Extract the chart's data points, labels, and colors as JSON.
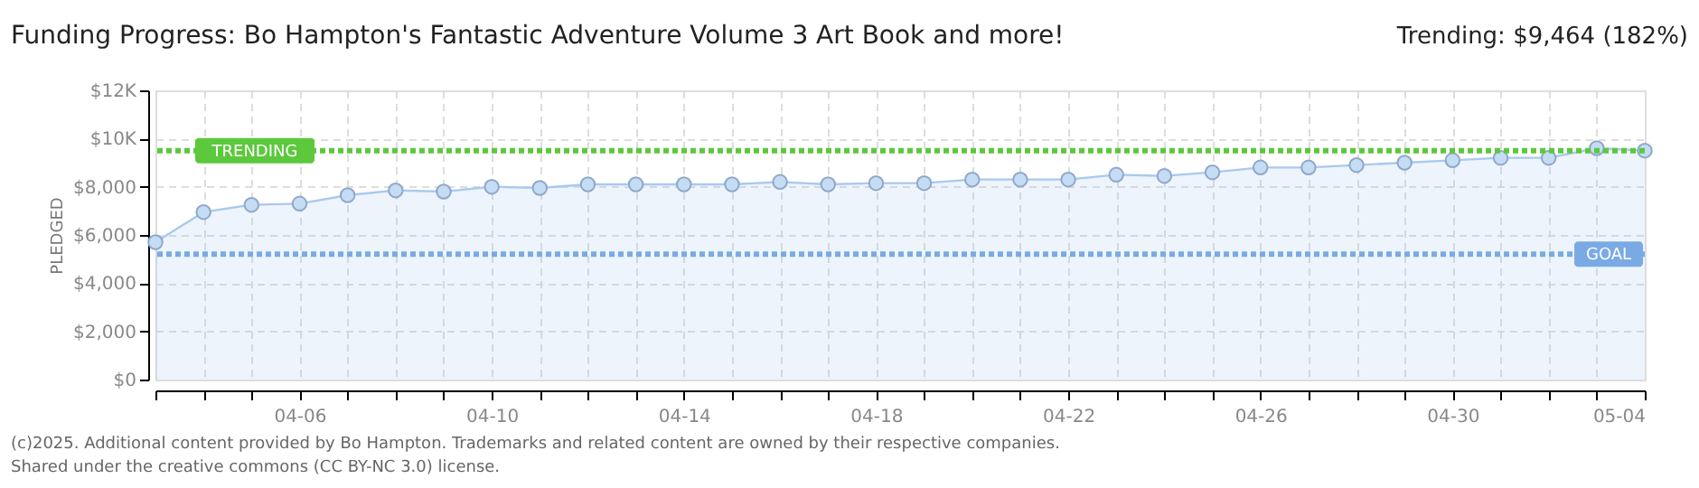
{
  "chart_data": {
    "type": "area",
    "title": "Funding Progress: Bo Hampton's Fantastic Adventure Volume 3 Art Book and more!",
    "ylabel": "PLEDGED",
    "annotations": [
      "Trending: $9,464 (182%)",
      "(c)2025. Additional content provided by Bo Hampton. Trademarks and related content are owned by their respective companies.",
      "Shared under the creative commons (CC BY-NC 3.0) license."
    ],
    "x": [
      "--04-03",
      "--04-04",
      "--04-05",
      "--04-06",
      "--04-07",
      "--04-08",
      "--04-09",
      "--04-10",
      "--04-11",
      "--04-12",
      "--04-13",
      "--04-14",
      "--04-15",
      "--04-16",
      "--04-17",
      "--04-18",
      "--04-19",
      "--04-20",
      "--04-21",
      "--04-22",
      "--04-23",
      "--04-24",
      "--04-25",
      "--04-26",
      "--04-27",
      "--04-28",
      "--04-29",
      "--04-30",
      "--05-01",
      "--05-02",
      "--05-03",
      "--05-04"
    ],
    "series": [
      {
        "color": "#a9c9ee",
        "values": [
          5700,
          6950,
          7250,
          7300,
          7650,
          7850,
          7800,
          8000,
          7950,
          8100,
          8100,
          8100,
          8100,
          8200,
          8100,
          8150,
          8150,
          8300,
          8300,
          8300,
          8500,
          8450,
          8600,
          8800,
          8800,
          8900,
          9000,
          9100,
          9200,
          9200,
          9600,
          9500
        ]
      }
    ],
    "xlim": [
      "--04-03",
      "--05-04"
    ],
    "xticks": [
      {
        "value": "--04-03",
        "label": null
      },
      {
        "value": "--04-04",
        "label": null
      },
      {
        "value": "--04-05",
        "label": null
      },
      {
        "value": "--04-06",
        "label": "04-06"
      },
      {
        "value": "--04-07",
        "label": null
      },
      {
        "value": "--04-08",
        "label": null
      },
      {
        "value": "--04-09",
        "label": null
      },
      {
        "value": "--04-10",
        "label": "04-10"
      },
      {
        "value": "--04-11",
        "label": null
      },
      {
        "value": "--04-12",
        "label": null
      },
      {
        "value": "--04-13",
        "label": null
      },
      {
        "value": "--04-14",
        "label": "04-14"
      },
      {
        "value": "--04-15",
        "label": null
      },
      {
        "value": "--04-16",
        "label": null
      },
      {
        "value": "--04-17",
        "label": null
      },
      {
        "value": "--04-18",
        "label": "04-18"
      },
      {
        "value": "--04-19",
        "label": null
      },
      {
        "value": "--04-20",
        "label": null
      },
      {
        "value": "--04-21",
        "label": null
      },
      {
        "value": "--04-22",
        "label": "04-22"
      },
      {
        "value": "--04-23",
        "label": null
      },
      {
        "value": "--04-24",
        "label": null
      },
      {
        "value": "--04-25",
        "label": null
      },
      {
        "value": "--04-26",
        "label": "04-26"
      },
      {
        "value": "--04-27",
        "label": null
      },
      {
        "value": "--04-28",
        "label": null
      },
      {
        "value": "--04-29",
        "label": null
      },
      {
        "value": "--04-30",
        "label": "04-30"
      },
      {
        "value": "--05-01",
        "label": null
      },
      {
        "value": "--05-02",
        "label": null
      },
      {
        "value": "--05-03",
        "label": null
      },
      {
        "value": "--05-04",
        "label": "05-04"
      }
    ],
    "ylim": [
      0,
      12000
    ],
    "yticks": [
      {
        "value": 0,
        "label": "$0"
      },
      {
        "value": 2000,
        "label": "$2,000"
      },
      {
        "value": 4000,
        "label": "$4,000"
      },
      {
        "value": 6000,
        "label": "$6,000"
      },
      {
        "value": 8000,
        "label": "$8,000"
      },
      {
        "value": 10000,
        "label": "$10K"
      },
      {
        "value": 12000,
        "label": "$12K"
      }
    ],
    "ref_lines": [
      {
        "axis": "y",
        "value": 9500,
        "label": "TRENDING",
        "color": "#5cc83c",
        "line_style": "dotted"
      },
      {
        "axis": "y",
        "value": 5200,
        "label": "GOAL",
        "color": "#7aaae4",
        "line_style": "dotted"
      }
    ],
    "grid": true,
    "marker": "circle"
  }
}
